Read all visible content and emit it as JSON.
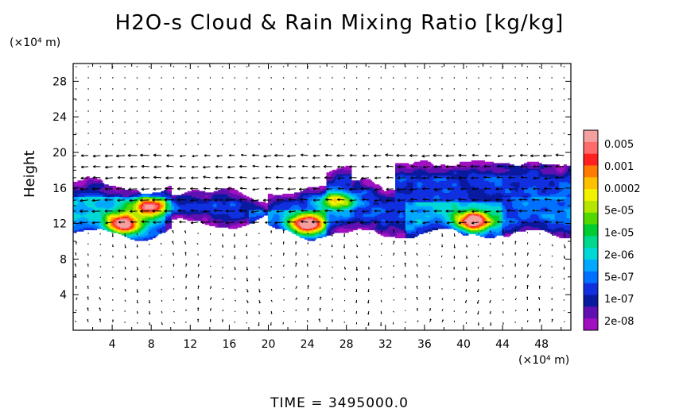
{
  "chart_data": {
    "type": "heatmap",
    "title": "H2O-s Cloud & Rain Mixing Ratio [kg/kg]",
    "ylabel": "Height",
    "x_unit": "(×10⁴ m)",
    "y_unit": "(×10⁴ m)",
    "xlim": [
      0,
      51
    ],
    "ylim": [
      0,
      30
    ],
    "x_ticks": [
      4,
      8,
      12,
      16,
      20,
      24,
      28,
      32,
      36,
      40,
      44,
      48
    ],
    "y_ticks": [
      4,
      8,
      12,
      16,
      20,
      24,
      28
    ],
    "overlay": "wind vectors",
    "colorbar": {
      "labels": [
        "0.005",
        "0.001",
        "0.0002",
        "5e-05",
        "1e-05",
        "2e-06",
        "5e-07",
        "1e-07",
        "2e-08"
      ],
      "colors": [
        "#f4a0a0",
        "#ff6a6a",
        "#ff2020",
        "#ff7a00",
        "#ffc000",
        "#f2f200",
        "#b4e600",
        "#52d800",
        "#00cc33",
        "#00d98c",
        "#00d8d8",
        "#00a8ff",
        "#0070ff",
        "#1030e0",
        "#0a1aa0",
        "#6010b0",
        "#a010c0"
      ]
    },
    "cloud_field": {
      "x_range": [
        0,
        51
      ],
      "band_bottom_km": 11,
      "band_top_km": 16.5,
      "upper_extension": {
        "x_range": [
          33,
          51
        ],
        "top": 19.5
      },
      "cores": [
        {
          "x": 5,
          "y": 12,
          "level": "0.0002"
        },
        {
          "x": 24,
          "y": 12,
          "level": "0.0002"
        },
        {
          "x": 41,
          "y": 12.3,
          "level": "0.0002"
        },
        {
          "x": 8,
          "y": 14,
          "level": "5e-05"
        },
        {
          "x": 27,
          "y": 14.5,
          "level": "1e-05"
        }
      ]
    },
    "time_label": "TIME = 3495000.0"
  }
}
